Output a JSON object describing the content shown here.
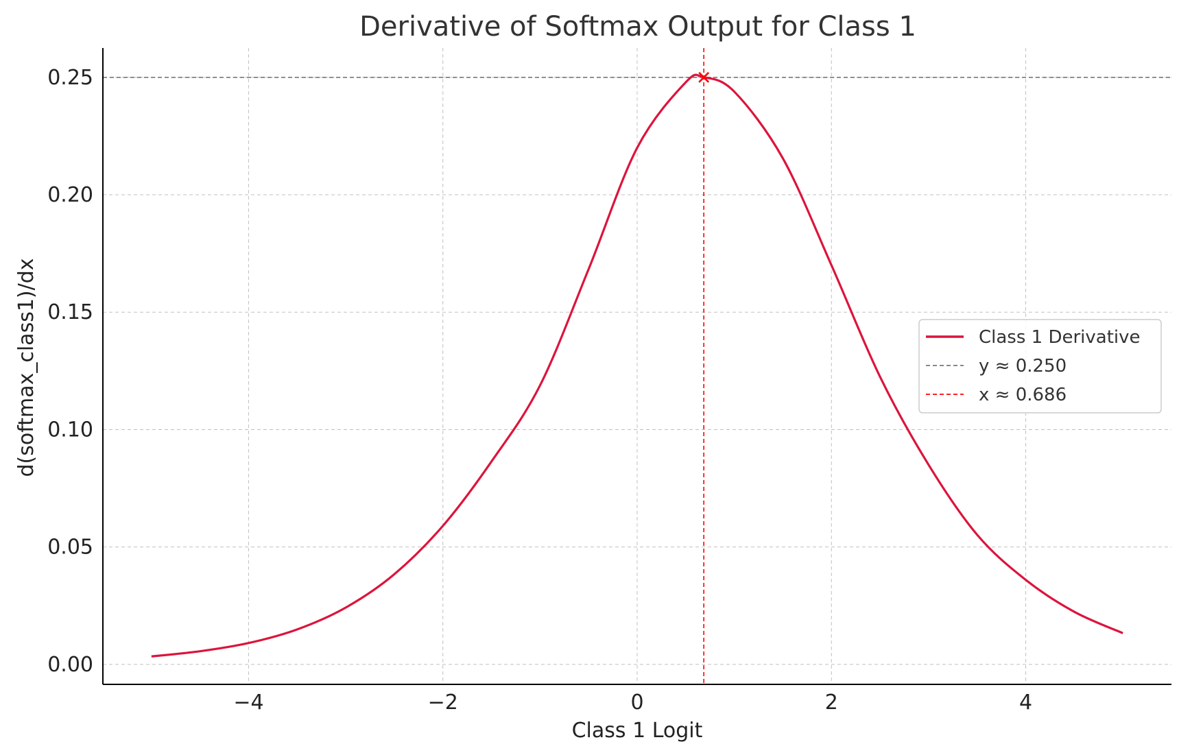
{
  "chart_data": {
    "type": "line",
    "title": "Derivative of Softmax Output for Class 1",
    "xlabel": "Class 1 Logit",
    "ylabel": "d(softmax_class1)/dx",
    "xlim": [
      -5.5,
      5.5
    ],
    "ylim": [
      -0.0085,
      0.2625
    ],
    "x_ticks": [
      -4,
      -2,
      0,
      2,
      4
    ],
    "x_tick_labels": [
      "−4",
      "−2",
      "0",
      "2",
      "4"
    ],
    "y_ticks": [
      0.0,
      0.05,
      0.1,
      0.15,
      0.2,
      0.25
    ],
    "y_tick_labels": [
      "0.00",
      "0.05",
      "0.10",
      "0.15",
      "0.20",
      "0.25"
    ],
    "grid": true,
    "legend_position": "center-right",
    "series": [
      {
        "name": "Class 1 Derivative",
        "color": "#dc143c",
        "style": "solid",
        "x": [
          -5,
          -4.5,
          -4,
          -3.5,
          -3,
          -2.5,
          -2,
          -1.5,
          -1,
          -0.5,
          0,
          0.5,
          0.686,
          1,
          1.5,
          2,
          2.5,
          3,
          3.5,
          4,
          4.5,
          5
        ],
        "y": [
          0.0034,
          0.0056,
          0.0091,
          0.0149,
          0.0242,
          0.0384,
          0.059,
          0.0864,
          0.1188,
          0.1683,
          0.22,
          0.2479,
          0.25,
          0.2439,
          0.2155,
          0.17,
          0.1225,
          0.085,
          0.0552,
          0.036,
          0.0224,
          0.0133
        ]
      }
    ],
    "reference_lines": [
      {
        "name": "y ≈ 0.250",
        "orientation": "horizontal",
        "value": 0.25,
        "color": "#777777",
        "style": "dashed"
      },
      {
        "name": "x ≈ 0.686",
        "orientation": "vertical",
        "value": 0.686,
        "color": "#ff0000",
        "style": "dashed"
      }
    ],
    "marker": {
      "x": 0.686,
      "y": 0.25,
      "symbol": "x",
      "color": "#ff0000"
    }
  }
}
